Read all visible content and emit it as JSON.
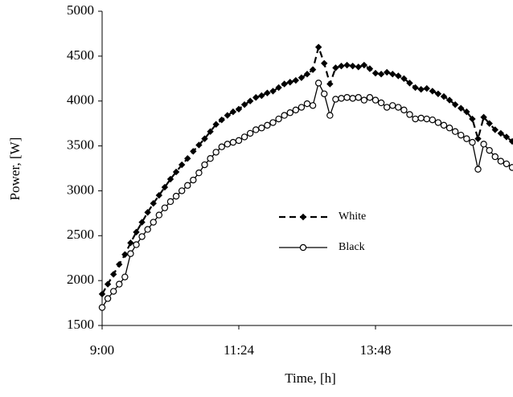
{
  "chart_data": {
    "type": "line",
    "x_label": "Time, [h]",
    "y_label": "Power, [W]",
    "x": [
      9.0,
      9.1,
      9.2,
      9.3,
      9.4,
      9.5,
      9.6,
      9.7,
      9.8,
      9.9,
      10.0,
      10.1,
      10.2,
      10.3,
      10.4,
      10.5,
      10.6,
      10.7,
      10.8,
      10.9,
      11.0,
      11.1,
      11.2,
      11.3,
      11.4,
      11.5,
      11.6,
      11.7,
      11.8,
      11.9,
      12.0,
      12.1,
      12.2,
      12.3,
      12.4,
      12.5,
      12.6,
      12.7,
      12.8,
      12.9,
      13.0,
      13.1,
      13.2,
      13.3,
      13.4,
      13.5,
      13.6,
      13.7,
      13.8,
      13.9,
      14.0,
      14.1,
      14.2,
      14.3,
      14.4,
      14.5,
      14.6,
      14.7,
      14.8,
      14.9,
      15.0,
      15.1,
      15.2,
      15.3,
      15.4,
      15.5,
      15.6,
      15.7,
      15.8,
      15.9,
      16.0,
      16.1,
      16.2
    ],
    "series": [
      {
        "name": "White",
        "color": "#000000",
        "dash": true,
        "marker": "diamond",
        "values": [
          1850,
          1960,
          2070,
          2180,
          2290,
          2420,
          2540,
          2650,
          2760,
          2860,
          2950,
          3040,
          3130,
          3210,
          3290,
          3360,
          3440,
          3510,
          3580,
          3660,
          3740,
          3790,
          3840,
          3880,
          3910,
          3960,
          4000,
          4040,
          4060,
          4090,
          4110,
          4150,
          4190,
          4210,
          4230,
          4260,
          4300,
          4350,
          4600,
          4420,
          4190,
          4370,
          4390,
          4400,
          4390,
          4380,
          4400,
          4360,
          4310,
          4300,
          4320,
          4300,
          4280,
          4250,
          4200,
          4150,
          4130,
          4140,
          4110,
          4080,
          4050,
          4010,
          3960,
          3920,
          3880,
          3800,
          3580,
          3820,
          3750,
          3680,
          3640,
          3600,
          3550
        ]
      },
      {
        "name": "Black",
        "color": "#000000",
        "dash": false,
        "marker": "circle",
        "values": [
          1700,
          1800,
          1880,
          1960,
          2040,
          2300,
          2400,
          2490,
          2570,
          2650,
          2730,
          2810,
          2880,
          2940,
          3000,
          3060,
          3120,
          3200,
          3290,
          3360,
          3430,
          3490,
          3520,
          3540,
          3560,
          3600,
          3640,
          3680,
          3700,
          3730,
          3760,
          3800,
          3840,
          3870,
          3900,
          3930,
          3970,
          3950,
          4200,
          4080,
          3840,
          4020,
          4030,
          4040,
          4030,
          4040,
          4010,
          4040,
          4010,
          3980,
          3930,
          3950,
          3930,
          3900,
          3850,
          3800,
          3810,
          3800,
          3790,
          3760,
          3730,
          3700,
          3660,
          3620,
          3580,
          3540,
          3240,
          3520,
          3450,
          3380,
          3330,
          3300,
          3260
        ]
      }
    ],
    "xlim": [
      9,
      16.2
    ],
    "xticks": [
      {
        "value": 9,
        "label": "9:00"
      },
      {
        "value": 11.4,
        "label": "11:24"
      },
      {
        "value": 13.8,
        "label": "13:48"
      }
    ],
    "ylim": [
      1500,
      5000
    ],
    "yticks": [
      1500,
      2000,
      2500,
      3000,
      3500,
      4000,
      4500,
      5000
    ],
    "grid": false,
    "legend": "center"
  }
}
